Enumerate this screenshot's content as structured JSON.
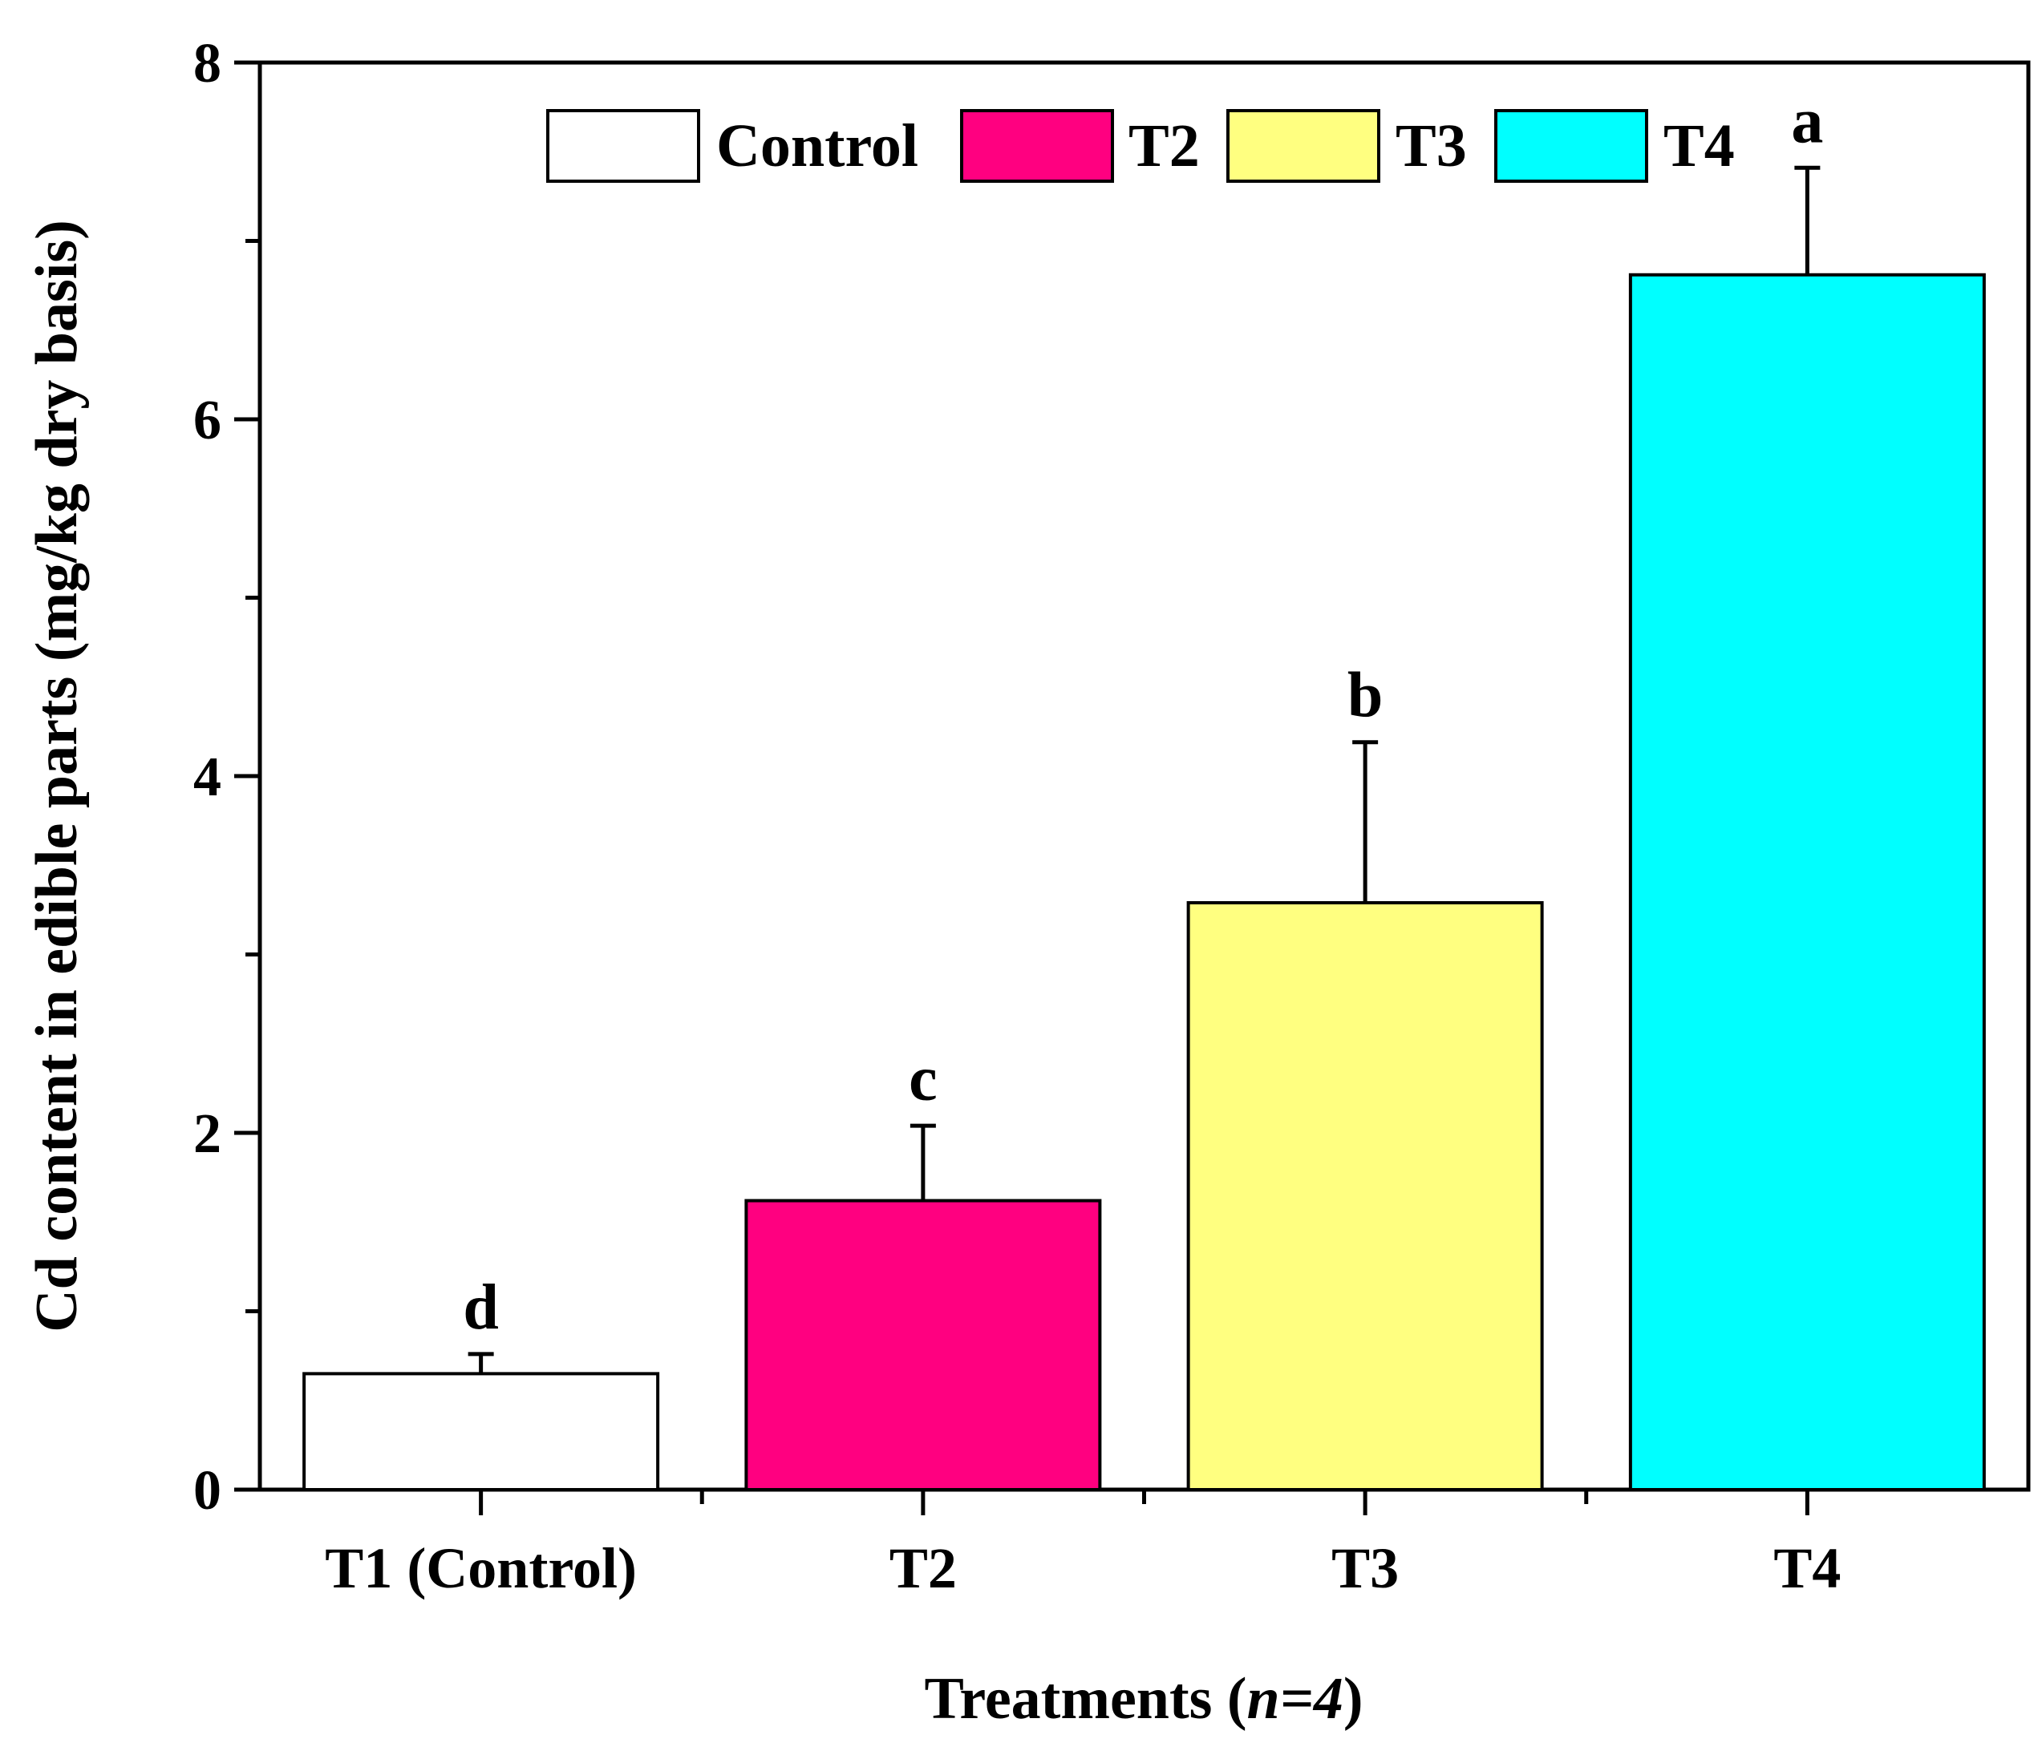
{
  "chart_data": {
    "type": "bar",
    "title": "",
    "xlabel_prefix": "Treatments (",
    "xlabel_italic": "n=4",
    "xlabel_suffix": ")",
    "ylabel": "Cd content in edible parts (mg/kg dry basis)",
    "categories": [
      "T1 (Control)",
      "T2",
      "T3",
      "T4"
    ],
    "series": [
      {
        "name": "Control",
        "color": "#ffffff",
        "values": [
          0.65,
          0,
          0,
          0
        ]
      },
      {
        "name": "T2",
        "color": "#ff0080",
        "values": [
          0,
          1.62,
          0,
          0
        ]
      },
      {
        "name": "T3",
        "color": "#ffff80",
        "values": [
          0,
          0,
          3.29,
          0
        ]
      },
      {
        "name": "T4",
        "color": "#00ffff",
        "values": [
          0,
          0,
          0,
          6.81
        ]
      }
    ],
    "values": [
      0.65,
      1.62,
      3.29,
      6.81
    ],
    "errors": [
      0.11,
      0.42,
      0.9,
      0.6
    ],
    "significance_letters": [
      "d",
      "c",
      "b",
      "a"
    ],
    "colors": [
      "#ffffff",
      "#ff0080",
      "#ffff80",
      "#00ffff"
    ],
    "ylim": [
      0,
      8
    ],
    "yticks": [
      0,
      2,
      4,
      6,
      8
    ],
    "yticks_minor": [
      1,
      3,
      5,
      7
    ],
    "legend_position": "top",
    "grid": false
  }
}
